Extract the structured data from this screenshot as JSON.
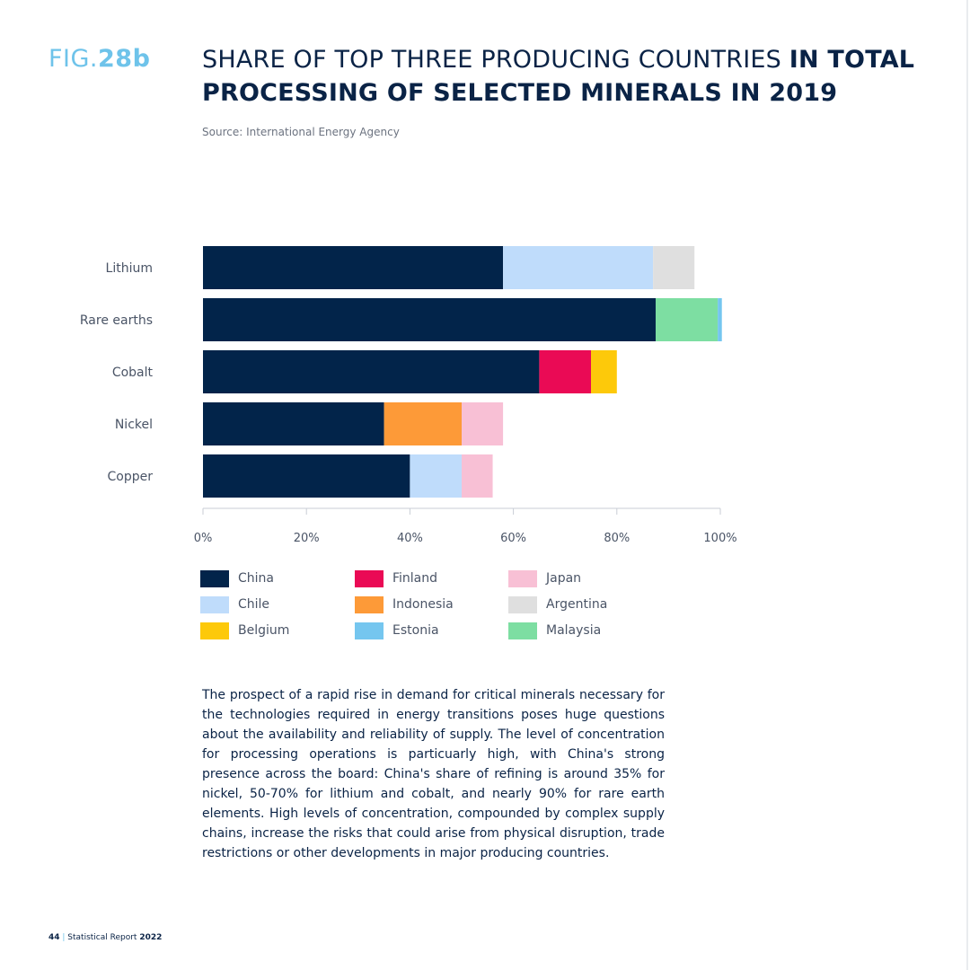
{
  "figure": {
    "prefix": "FIG.",
    "number": "28b"
  },
  "title": {
    "regular": "SHARE OF TOP THREE PRODUCING COUNTRIES ",
    "bold": "IN TOTAL PROCESSING OF SELECTED MINERALS IN 2019"
  },
  "source": "Source: International Energy Agency",
  "chart_data": {
    "type": "bar",
    "orientation": "horizontal",
    "stacked": true,
    "categories": [
      "Lithium",
      "Rare earths",
      "Cobalt",
      "Nickel",
      "Copper"
    ],
    "xlim": [
      0,
      100
    ],
    "x_ticks": [
      "0%",
      "20%",
      "40%",
      "60%",
      "80%",
      "100%"
    ],
    "grid": false,
    "legend_position": "bottom",
    "series": [
      {
        "name": "China",
        "color": "#02244a",
        "values": [
          58,
          87.5,
          65,
          35,
          40
        ]
      },
      {
        "name": "Chile",
        "color": "#bfdcfb",
        "values": [
          29,
          0,
          0,
          0,
          10
        ]
      },
      {
        "name": "Argentina",
        "color": "#dfdfdf",
        "values": [
          8,
          0,
          0,
          0,
          0
        ]
      },
      {
        "name": "Malaysia",
        "color": "#7ddea2",
        "values": [
          0,
          12,
          0,
          0,
          0
        ]
      },
      {
        "name": "Estonia",
        "color": "#75c6ef",
        "values": [
          0,
          0.8,
          0,
          0,
          0
        ]
      },
      {
        "name": "Finland",
        "color": "#ea0a55",
        "values": [
          0,
          0,
          10,
          0,
          0
        ]
      },
      {
        "name": "Belgium",
        "color": "#fdc90a",
        "values": [
          0,
          0,
          5,
          0,
          0
        ]
      },
      {
        "name": "Indonesia",
        "color": "#fd9a38",
        "values": [
          0,
          0,
          0,
          15,
          0
        ]
      },
      {
        "name": "Japan",
        "color": "#f8c0d5",
        "values": [
          0,
          0,
          0,
          8,
          6
        ]
      }
    ]
  },
  "legend": {
    "items": [
      {
        "name": "China",
        "color": "#02244a"
      },
      {
        "name": "Chile",
        "color": "#bfdcfb"
      },
      {
        "name": "Belgium",
        "color": "#fdc90a"
      },
      {
        "name": "Finland",
        "color": "#ea0a55"
      },
      {
        "name": "Indonesia",
        "color": "#fd9a38"
      },
      {
        "name": "Estonia",
        "color": "#75c6ef"
      },
      {
        "name": "Japan",
        "color": "#f8c0d5"
      },
      {
        "name": "Argentina",
        "color": "#dfdfdf"
      },
      {
        "name": "Malaysia",
        "color": "#7ddea2"
      }
    ]
  },
  "body_text": "The prospect of a rapid rise in demand for critical minerals necessary for the technologies required in energy transitions poses huge questions about the availability and reliability of supply. The level of concentration for processing operations is particuarly high, with China's strong presence across the board: China's share of refining is around 35% for nickel, 50-70% for lithium and cobalt, and nearly 90% for rare earth elements. High levels of concentration, compounded by complex supply chains, increase the risks that could arise from physical disruption, trade restrictions or other developments in major producing countries.",
  "footer": {
    "page": "44",
    "separator": " | ",
    "report_name": "Statistical Report ",
    "report_year": "2022"
  },
  "colors": {
    "accent": "#6ec3ea",
    "navy": "#0a2346"
  }
}
